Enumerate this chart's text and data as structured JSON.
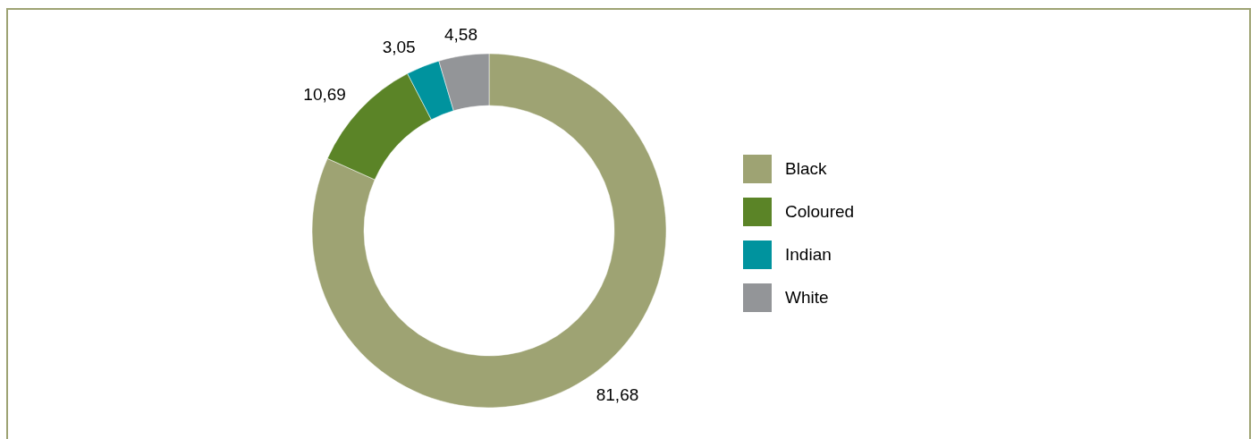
{
  "chart_data": {
    "type": "donut",
    "categories": [
      "Black",
      "Coloured",
      "Indian",
      "White"
    ],
    "values": [
      81.68,
      10.69,
      3.05,
      4.58
    ],
    "value_labels": [
      "81,68",
      "10,69",
      "3,05",
      "4,58"
    ],
    "colors": [
      "#9ea373",
      "#5b8427",
      "#00939e",
      "#939598"
    ],
    "legend": "right"
  }
}
